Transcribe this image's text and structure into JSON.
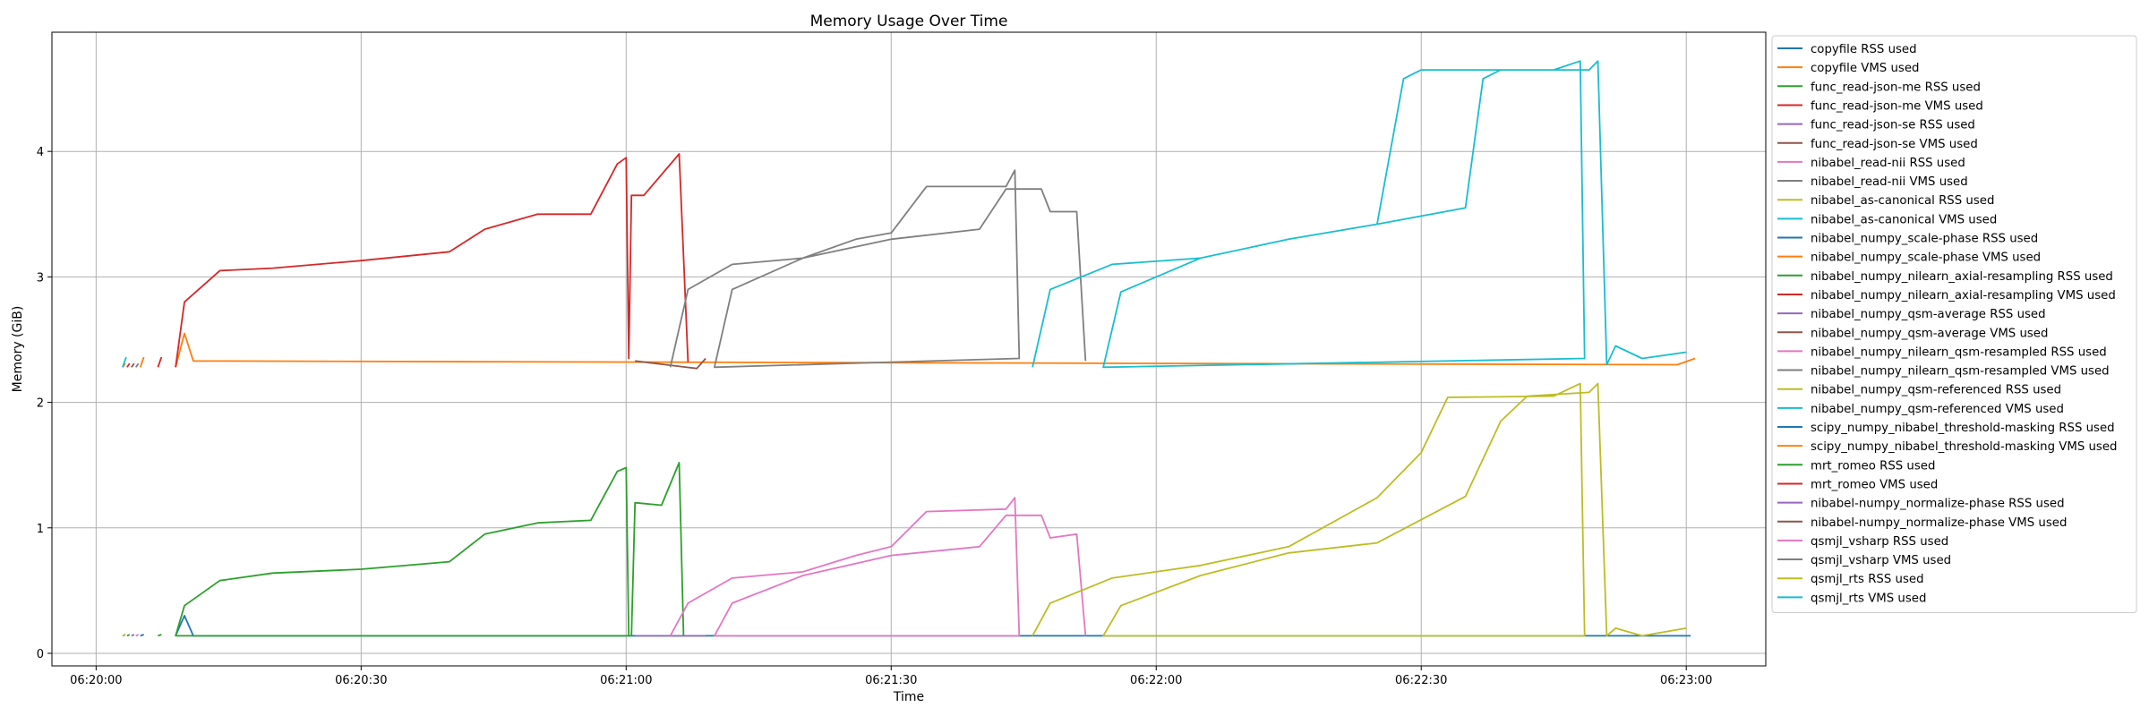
{
  "chart_data": {
    "type": "line",
    "title": "Memory Usage Over Time",
    "xlabel": "Time",
    "ylabel": "Memory (GiB)",
    "xlim": [
      "06:19:55",
      "06:23:09"
    ],
    "ylim": [
      -0.1,
      4.95
    ],
    "x_ticks": [
      "06:20:00",
      "06:20:30",
      "06:21:00",
      "06:21:30",
      "06:22:00",
      "06:22:30",
      "06:23:00"
    ],
    "y_ticks": [
      0,
      1,
      2,
      3,
      4
    ],
    "grid": true,
    "legend_position": "outside-right",
    "series": [
      {
        "name": "copyfile RSS used",
        "color": "#1f77b4",
        "points": [
          [
            "06:20:03",
            0.14
          ],
          [
            "06:20:03.3",
            0.15
          ]
        ]
      },
      {
        "name": "copyfile VMS used",
        "color": "#ff7f0e",
        "points": [
          [
            "06:20:03",
            2.28
          ],
          [
            "06:20:03.3",
            2.31
          ]
        ]
      },
      {
        "name": "func_read-json-me RSS used",
        "color": "#2ca02c",
        "points": [
          [
            "06:20:03.5",
            0.14
          ],
          [
            "06:20:03.8",
            0.15
          ]
        ]
      },
      {
        "name": "func_read-json-me VMS used",
        "color": "#d62728",
        "points": [
          [
            "06:20:03.5",
            2.28
          ],
          [
            "06:20:03.8",
            2.31
          ]
        ]
      },
      {
        "name": "func_read-json-se RSS used",
        "color": "#9467bd",
        "points": [
          [
            "06:20:04",
            0.14
          ],
          [
            "06:20:04.3",
            0.15
          ]
        ]
      },
      {
        "name": "func_read-json-se VMS used",
        "color": "#8c564b",
        "points": [
          [
            "06:20:04",
            2.28
          ],
          [
            "06:20:04.3",
            2.31
          ]
        ]
      },
      {
        "name": "nibabel_read-nii RSS used",
        "color": "#e377c2",
        "points": [
          [
            "06:20:04.5",
            0.14
          ],
          [
            "06:20:04.8",
            0.15
          ]
        ]
      },
      {
        "name": "nibabel_read-nii VMS used",
        "color": "#7f7f7f",
        "points": [
          [
            "06:20:04.5",
            2.28
          ],
          [
            "06:20:04.8",
            2.31
          ]
        ]
      },
      {
        "name": "nibabel_as-canonical RSS used",
        "color": "#bcbd22",
        "points": [
          [
            "06:20:03",
            0.14
          ],
          [
            "06:20:03.3",
            0.15
          ]
        ]
      },
      {
        "name": "nibabel_as-canonical VMS used",
        "color": "#17becf",
        "points": [
          [
            "06:20:03",
            2.28
          ],
          [
            "06:20:03.4",
            2.36
          ]
        ]
      },
      {
        "name": "nibabel_numpy_scale-phase RSS used",
        "color": "#1f77b4",
        "points": [
          [
            "06:20:05",
            0.14
          ],
          [
            "06:20:05.4",
            0.15
          ]
        ]
      },
      {
        "name": "nibabel_numpy_scale-phase VMS used",
        "color": "#ff7f0e",
        "points": [
          [
            "06:20:05",
            2.28
          ],
          [
            "06:20:05.4",
            2.36
          ]
        ]
      },
      {
        "name": "nibabel_numpy_nilearn_axial-resampling RSS used",
        "color": "#2ca02c",
        "points": [
          [
            "06:20:07",
            0.14
          ],
          [
            "06:20:07.4",
            0.15
          ]
        ]
      },
      {
        "name": "nibabel_numpy_nilearn_axial-resampling VMS used",
        "color": "#d62728",
        "points": [
          [
            "06:20:07",
            2.28
          ],
          [
            "06:20:07.4",
            2.36
          ]
        ]
      },
      {
        "name": "nibabel_numpy_qsm-average RSS used",
        "color": "#9467bd",
        "points": []
      },
      {
        "name": "nibabel_numpy_qsm-average VMS used",
        "color": "#8c564b",
        "points": []
      },
      {
        "name": "nibabel_numpy_nilearn_qsm-resampled RSS used",
        "color": "#e377c2",
        "points": []
      },
      {
        "name": "nibabel_numpy_nilearn_qsm-resampled VMS used",
        "color": "#7f7f7f",
        "points": []
      },
      {
        "name": "nibabel_numpy_qsm-referenced RSS used",
        "color": "#bcbd22",
        "points": []
      },
      {
        "name": "nibabel_numpy_qsm-referenced VMS used",
        "color": "#17becf",
        "points": []
      },
      {
        "name": "scipy_numpy_nibabel_threshold-masking RSS used",
        "color": "#1f77b4",
        "points": [
          [
            "06:20:09",
            0.14
          ],
          [
            "06:20:10",
            0.3
          ],
          [
            "06:20:11",
            0.14
          ],
          [
            "06:21:00.5",
            0.14
          ],
          [
            "06:23:00.5",
            0.14
          ]
        ]
      },
      {
        "name": "scipy_numpy_nibabel_threshold-masking VMS used",
        "color": "#ff7f0e",
        "points": [
          [
            "06:20:09",
            2.28
          ],
          [
            "06:20:10",
            2.55
          ],
          [
            "06:20:11",
            2.33
          ],
          [
            "06:22:59",
            2.3
          ],
          [
            "06:23:01",
            2.35
          ]
        ]
      },
      {
        "name": "mrt_romeo RSS used",
        "color": "#2ca02c",
        "points": [
          [
            "06:20:09",
            0.14
          ],
          [
            "06:20:10",
            0.38
          ],
          [
            "06:20:14",
            0.58
          ],
          [
            "06:20:20",
            0.64
          ],
          [
            "06:20:30",
            0.67
          ],
          [
            "06:20:40",
            0.73
          ],
          [
            "06:20:44",
            0.95
          ],
          [
            "06:20:50",
            1.04
          ],
          [
            "06:20:56",
            1.06
          ],
          [
            "06:20:59",
            1.45
          ],
          [
            "06:21:00",
            1.48
          ],
          [
            "06:21:00.3",
            0.14
          ],
          [
            "06:20:09",
            0.14
          ],
          [
            "06:21:00.6",
            0.14
          ],
          [
            "06:21:01",
            1.2
          ],
          [
            "06:21:04",
            1.18
          ],
          [
            "06:21:06",
            1.52
          ],
          [
            "06:21:06.5",
            0.14
          ]
        ]
      },
      {
        "name": "mrt_romeo VMS used",
        "color": "#d62728",
        "points": [
          [
            "06:20:09",
            2.28
          ],
          [
            "06:20:10",
            2.8
          ],
          [
            "06:20:14",
            3.05
          ],
          [
            "06:20:20",
            3.07
          ],
          [
            "06:20:30",
            3.13
          ],
          [
            "06:20:40",
            3.2
          ],
          [
            "06:20:44",
            3.38
          ],
          [
            "06:20:50",
            3.5
          ],
          [
            "06:20:56",
            3.5
          ],
          [
            "06:20:59",
            3.9
          ],
          [
            "06:21:00",
            3.95
          ],
          [
            "06:21:00.3",
            2.35
          ],
          [
            "06:21:00.6",
            3.65
          ],
          [
            "06:21:02",
            3.65
          ],
          [
            "06:21:06",
            3.98
          ],
          [
            "06:21:07",
            2.32
          ]
        ]
      },
      {
        "name": "nibabel-numpy_normalize-phase RSS used",
        "color": "#9467bd",
        "points": [
          [
            "06:21:01",
            0.14
          ],
          [
            "06:21:09",
            0.14
          ]
        ]
      },
      {
        "name": "nibabel-numpy_normalize-phase VMS used",
        "color": "#8c564b",
        "points": [
          [
            "06:21:01",
            2.33
          ],
          [
            "06:21:08",
            2.27
          ],
          [
            "06:21:09",
            2.35
          ]
        ]
      },
      {
        "name": "qsmjl_vsharp RSS used",
        "color": "#e377c2",
        "points": [
          [
            "06:21:05",
            0.14
          ],
          [
            "06:21:07",
            0.4
          ],
          [
            "06:21:12",
            0.6
          ],
          [
            "06:21:20",
            0.65
          ],
          [
            "06:21:26",
            0.78
          ],
          [
            "06:21:30",
            0.85
          ],
          [
            "06:21:34",
            1.13
          ],
          [
            "06:21:43",
            1.15
          ],
          [
            "06:21:44",
            1.24
          ],
          [
            "06:21:44.5",
            0.14
          ],
          [
            "06:21:10",
            0.14
          ],
          [
            "06:21:12",
            0.4
          ],
          [
            "06:21:20",
            0.62
          ],
          [
            "06:21:30",
            0.78
          ],
          [
            "06:21:40",
            0.85
          ],
          [
            "06:21:43",
            1.1
          ],
          [
            "06:21:47",
            1.1
          ],
          [
            "06:21:48",
            0.92
          ],
          [
            "06:21:51",
            0.95
          ],
          [
            "06:21:52",
            0.14
          ]
        ]
      },
      {
        "name": "qsmjl_vsharp VMS used",
        "color": "#7f7f7f",
        "points": [
          [
            "06:21:05",
            2.28
          ],
          [
            "06:21:07",
            2.9
          ],
          [
            "06:21:12",
            3.1
          ],
          [
            "06:21:20",
            3.15
          ],
          [
            "06:21:26",
            3.3
          ],
          [
            "06:21:30",
            3.35
          ],
          [
            "06:21:34",
            3.72
          ],
          [
            "06:21:43",
            3.72
          ],
          [
            "06:21:44",
            3.85
          ],
          [
            "06:21:44.5",
            2.35
          ],
          [
            "06:21:10",
            2.28
          ],
          [
            "06:21:12",
            2.9
          ],
          [
            "06:21:20",
            3.15
          ],
          [
            "06:21:30",
            3.3
          ],
          [
            "06:21:40",
            3.38
          ],
          [
            "06:21:43",
            3.7
          ],
          [
            "06:21:47",
            3.7
          ],
          [
            "06:21:48",
            3.52
          ],
          [
            "06:21:51",
            3.52
          ],
          [
            "06:21:52",
            2.33
          ]
        ]
      },
      {
        "name": "qsmjl_rts RSS used",
        "color": "#bcbd22",
        "points": [
          [
            "06:21:46",
            0.14
          ],
          [
            "06:21:48",
            0.4
          ],
          [
            "06:21:55",
            0.6
          ],
          [
            "06:22:05",
            0.7
          ],
          [
            "06:22:15",
            0.85
          ],
          [
            "06:22:25",
            1.24
          ],
          [
            "06:22:30",
            1.6
          ],
          [
            "06:22:33",
            2.04
          ],
          [
            "06:22:45",
            2.05
          ],
          [
            "06:22:48",
            2.15
          ],
          [
            "06:22:48.5",
            0.14
          ],
          [
            "06:21:54",
            0.14
          ],
          [
            "06:21:56",
            0.38
          ],
          [
            "06:22:05",
            0.62
          ],
          [
            "06:22:15",
            0.8
          ],
          [
            "06:22:25",
            0.88
          ],
          [
            "06:22:35",
            1.25
          ],
          [
            "06:22:39",
            1.85
          ],
          [
            "06:22:42",
            2.05
          ],
          [
            "06:22:49",
            2.08
          ],
          [
            "06:22:50",
            2.15
          ],
          [
            "06:22:51",
            0.14
          ],
          [
            "06:22:52",
            0.2
          ],
          [
            "06:22:55",
            0.14
          ],
          [
            "06:23:00",
            0.2
          ]
        ]
      },
      {
        "name": "qsmjl_rts VMS used",
        "color": "#17becf",
        "points": [
          [
            "06:21:46",
            2.28
          ],
          [
            "06:21:48",
            2.9
          ],
          [
            "06:21:55",
            3.1
          ],
          [
            "06:22:05",
            3.15
          ],
          [
            "06:22:15",
            3.3
          ],
          [
            "06:22:25",
            3.42
          ],
          [
            "06:22:28",
            4.58
          ],
          [
            "06:22:30",
            4.65
          ],
          [
            "06:22:45",
            4.65
          ],
          [
            "06:22:48",
            4.72
          ],
          [
            "06:22:48.5",
            2.35
          ],
          [
            "06:21:54",
            2.28
          ],
          [
            "06:21:56",
            2.88
          ],
          [
            "06:22:05",
            3.15
          ],
          [
            "06:22:15",
            3.3
          ],
          [
            "06:22:25",
            3.42
          ],
          [
            "06:22:35",
            3.55
          ],
          [
            "06:22:37",
            4.58
          ],
          [
            "06:22:39",
            4.65
          ],
          [
            "06:22:49",
            4.65
          ],
          [
            "06:22:50",
            4.72
          ],
          [
            "06:22:51",
            2.3
          ],
          [
            "06:22:52",
            2.45
          ],
          [
            "06:22:55",
            2.35
          ],
          [
            "06:23:00",
            2.4
          ]
        ]
      }
    ]
  }
}
